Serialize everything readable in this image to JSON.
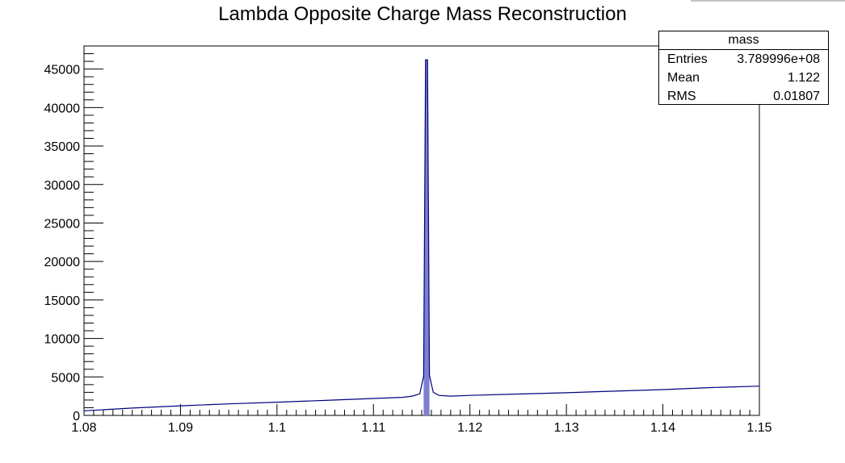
{
  "chart_data": {
    "type": "line",
    "title": "Lambda Opposite Charge Mass Reconstruction",
    "xlabel": "",
    "ylabel": "",
    "xlim": [
      1.08,
      1.15
    ],
    "ylim": [
      0,
      48000
    ],
    "x_ticks": [
      "1.08",
      "1.09",
      "1.1",
      "1.11",
      "1.12",
      "1.13",
      "1.14",
      "1.15"
    ],
    "y_ticks": [
      "0",
      "5000",
      "10000",
      "15000",
      "20000",
      "25000",
      "30000",
      "35000",
      "40000",
      "45000"
    ],
    "series": [
      {
        "x": [
          1.08,
          1.085,
          1.09,
          1.095,
          1.1,
          1.105,
          1.11,
          1.113,
          1.114,
          1.1148,
          1.1152,
          1.1154,
          1.1156,
          1.1158,
          1.1162,
          1.1168,
          1.118,
          1.12,
          1.125,
          1.13,
          1.135,
          1.14,
          1.145,
          1.15
        ],
        "y": [
          600,
          950,
          1250,
          1500,
          1720,
          1950,
          2200,
          2350,
          2500,
          2800,
          5100,
          46200,
          46200,
          5200,
          3000,
          2600,
          2500,
          2600,
          2780,
          2950,
          3150,
          3350,
          3620,
          3800
        ]
      }
    ],
    "colors": {
      "line": "#000080",
      "fill": "#7f7fd0"
    }
  },
  "stats": {
    "name": "mass",
    "entries_label": "Entries",
    "entries_value": "3.789996e+08",
    "mean_label": "Mean",
    "mean_value": "1.122",
    "rms_label": "RMS",
    "rms_value": "0.01807"
  }
}
